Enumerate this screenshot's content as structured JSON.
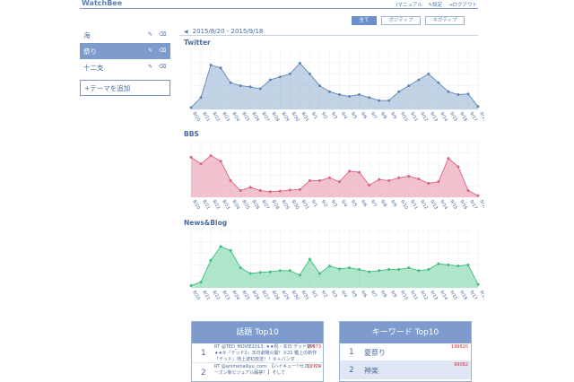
{
  "app": {
    "brand": "WatchBee",
    "links": [
      "マニュアル",
      "設定",
      "ログアウト"
    ]
  },
  "sidebar": {
    "items": [
      {
        "label": "海",
        "active": false
      },
      {
        "label": "祭り",
        "active": true
      },
      {
        "label": "十二支",
        "active": false
      }
    ],
    "add_label": "+テーマを追加"
  },
  "filters": [
    "全て",
    "ポジティブ",
    "ネガティブ"
  ],
  "filters_active": 0,
  "date_range": "2015/8/20 - 2015/9/18",
  "colors": {
    "twitter": "#8faed0",
    "bbs": "#e98fa7",
    "news": "#6fd3a0",
    "accent": "#7d9ccd"
  },
  "chart_data": [
    {
      "type": "area",
      "title": "Twitter",
      "x": [
        "8/20",
        "8/21",
        "8/22",
        "8/23",
        "8/24",
        "8/25",
        "8/26",
        "8/27",
        "8/28",
        "8/29",
        "8/30",
        "8/31",
        "9/1",
        "9/2",
        "9/3",
        "9/4",
        "9/5",
        "9/6",
        "9/7",
        "9/8",
        "9/9",
        "9/10",
        "9/11",
        "9/12",
        "9/13",
        "9/14",
        "9/15",
        "9/16",
        "9/17",
        "9/18"
      ],
      "values": [
        3,
        20,
        75,
        70,
        45,
        40,
        38,
        35,
        50,
        55,
        60,
        78,
        60,
        40,
        30,
        25,
        22,
        25,
        20,
        15,
        15,
        30,
        40,
        50,
        60,
        45,
        30,
        25,
        26,
        5
      ],
      "ylim": [
        0,
        100
      ],
      "grid": true
    },
    {
      "type": "area",
      "title": "BBS",
      "x": [
        "8/20",
        "8/21",
        "8/22",
        "8/23",
        "8/24",
        "8/25",
        "8/26",
        "8/27",
        "8/28",
        "8/29",
        "8/30",
        "8/31",
        "9/1",
        "9/2",
        "9/3",
        "9/4",
        "9/5",
        "9/6",
        "9/7",
        "9/8",
        "9/9",
        "9/10",
        "9/11",
        "9/12",
        "9/13",
        "9/14",
        "9/15",
        "9/16",
        "9/17",
        "9/18"
      ],
      "values": [
        72,
        60,
        75,
        65,
        30,
        12,
        18,
        12,
        10,
        11,
        13,
        14,
        30,
        30,
        35,
        28,
        47,
        45,
        22,
        32,
        30,
        35,
        38,
        33,
        25,
        28,
        70,
        55,
        12,
        3
      ],
      "ylim": [
        0,
        100
      ],
      "grid": true
    },
    {
      "type": "area",
      "title": "News&Blog",
      "x": [
        "8/20",
        "8/21",
        "8/22",
        "8/23",
        "8/24",
        "8/25",
        "8/26",
        "8/27",
        "8/28",
        "8/29",
        "8/30",
        "8/31",
        "9/1",
        "9/2",
        "9/3",
        "9/4",
        "9/5",
        "9/6",
        "9/7",
        "9/8",
        "9/9",
        "9/10",
        "9/11",
        "9/12",
        "9/13",
        "9/14",
        "9/15",
        "9/16",
        "9/17",
        "9/18"
      ],
      "values": [
        4,
        10,
        48,
        72,
        65,
        35,
        25,
        27,
        28,
        30,
        30,
        22,
        50,
        25,
        38,
        33,
        35,
        32,
        28,
        30,
        32,
        32,
        35,
        30,
        32,
        42,
        40,
        38,
        40,
        6
      ],
      "ylim": [
        0,
        100
      ],
      "grid": true
    }
  ],
  "topics": {
    "title": "話題 Top10",
    "rows": [
      {
        "rank": "1",
        "text": "RT @TED_MOVIE2013: ★★祝・本日 デッド祭り★★⑤『テッド2』本日劇場公開！②21 鑑上の新作『テッド』地上波初放送！！③＋パンダ",
        "count": "16673"
      },
      {
        "rank": "2",
        "text": "RT @animehaikyu_com: 【ハイキュー!!セカンドシーズン新ビジュアル解禁！】そして",
        "count": "10724"
      }
    ]
  },
  "keywords": {
    "title": "キーワード Top10",
    "rows": [
      {
        "rank": "1",
        "text": "夏祭り",
        "count": "199820"
      },
      {
        "rank": "2",
        "text": "神楽",
        "count": "99082"
      }
    ]
  }
}
